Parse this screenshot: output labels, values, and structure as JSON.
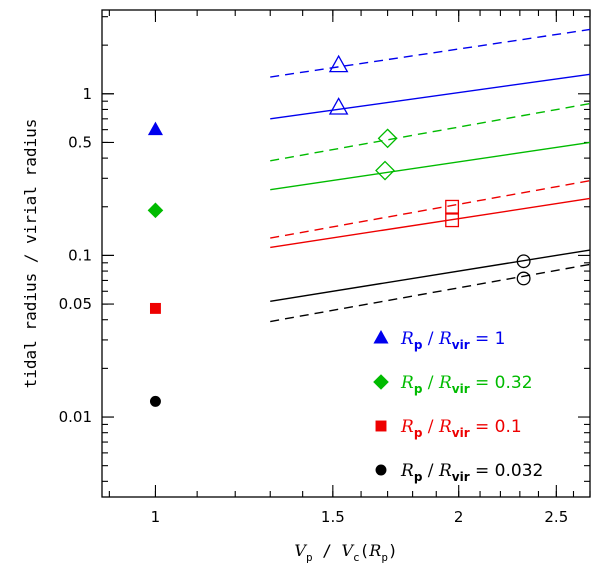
{
  "chart_data": {
    "type": "scatter",
    "xlabel": "V_p / V_c(R_p)",
    "ylabel": "tidal radius / virial radius",
    "xscale": "log",
    "yscale": "log",
    "xlim": [
      0.885,
      2.7
    ],
    "ylim": [
      0.0032,
      3.3
    ],
    "xticks": [
      {
        "value": 1,
        "label": "1"
      },
      {
        "value": 1.5,
        "label": "1.5"
      },
      {
        "value": 2,
        "label": "2"
      },
      {
        "value": 2.5,
        "label": "2.5"
      }
    ],
    "yticks": [
      {
        "value": 0.01,
        "label": "0.01"
      },
      {
        "value": 0.05,
        "label": "0.05"
      },
      {
        "value": 0.1,
        "label": "0.1"
      },
      {
        "value": 0.5,
        "label": "0.5"
      },
      {
        "value": 1,
        "label": "1"
      }
    ],
    "legend_placement": "bottom-right",
    "series": [
      {
        "color": "#0000ee",
        "marker": "triangle",
        "legend": {
          "sub1": "p",
          "sub2": "vir",
          "value": "1"
        },
        "point": {
          "x": 1,
          "y": 0.6
        },
        "solid_line": [
          [
            1.3,
            0.7
          ],
          [
            2.7,
            1.32
          ]
        ],
        "dashed_line": [
          [
            1.3,
            1.27
          ],
          [
            2.7,
            2.5
          ]
        ],
        "open_markers": [
          {
            "x": 1.52,
            "y": 1.5
          },
          {
            "x": 1.52,
            "y": 0.82
          }
        ]
      },
      {
        "color": "#00bb00",
        "marker": "diamond",
        "legend": {
          "sub1": "p",
          "sub2": "vir",
          "value": "0.32"
        },
        "point": {
          "x": 1,
          "y": 0.19
        },
        "solid_line": [
          [
            1.3,
            0.255
          ],
          [
            2.7,
            0.5
          ]
        ],
        "dashed_line": [
          [
            1.3,
            0.385
          ],
          [
            2.7,
            0.87
          ]
        ],
        "open_markers": [
          {
            "x": 1.7,
            "y": 0.53
          },
          {
            "x": 1.69,
            "y": 0.335
          }
        ]
      },
      {
        "color": "#ee0000",
        "marker": "square",
        "legend": {
          "sub1": "p",
          "sub2": "vir",
          "value": "0.1"
        },
        "point": {
          "x": 1,
          "y": 0.047
        },
        "solid_line": [
          [
            1.3,
            0.112
          ],
          [
            2.7,
            0.225
          ]
        ],
        "dashed_line": [
          [
            1.3,
            0.128
          ],
          [
            2.7,
            0.29
          ]
        ],
        "open_markers": [
          {
            "x": 1.97,
            "y": 0.2
          },
          {
            "x": 1.97,
            "y": 0.165
          }
        ]
      },
      {
        "color": "#000000",
        "marker": "circle",
        "legend": {
          "sub1": "p",
          "sub2": "vir",
          "value": "0.032"
        },
        "point": {
          "x": 1,
          "y": 0.0125
        },
        "solid_line": [
          [
            1.3,
            0.052
          ],
          [
            2.7,
            0.108
          ]
        ],
        "dashed_line": [
          [
            1.3,
            0.039
          ],
          [
            2.7,
            0.088
          ]
        ],
        "open_markers": [
          {
            "x": 2.32,
            "y": 0.092
          },
          {
            "x": 2.32,
            "y": 0.072
          }
        ]
      }
    ]
  }
}
